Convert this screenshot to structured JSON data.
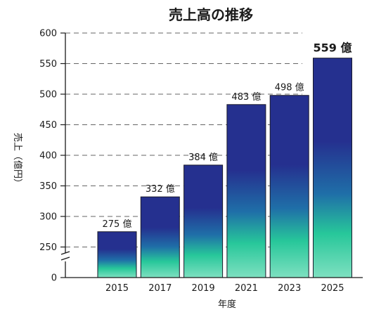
{
  "chart_data": {
    "type": "bar",
    "title": "売上高の推移",
    "xlabel": "年度",
    "ylabel": "売上（億円）",
    "categories": [
      "2015",
      "2017",
      "2019",
      "2021",
      "2023",
      "2025"
    ],
    "values": [
      275,
      332,
      384,
      483,
      498,
      559
    ],
    "data_labels": [
      "275 億",
      "332 億",
      "384 億",
      "483 億",
      "498 億",
      "559 億"
    ],
    "highlight_last_label": true,
    "y_ticks": [
      0,
      250,
      300,
      350,
      400,
      450,
      500,
      550,
      600
    ],
    "y_tick_labels": [
      "0",
      "250",
      "300",
      "350",
      "400",
      "450",
      "500",
      "550",
      "600"
    ],
    "ylim": [
      0,
      600
    ],
    "axis_break": true,
    "grid": "dashed-horizontal",
    "colors": {
      "bar_top": "#25308f",
      "bar_mid": "#1f6fa8",
      "bar_low": "#27c79a",
      "bar_bottom": "#7ee0c0",
      "grid": "#666666",
      "axis": "#1a1a1a"
    }
  }
}
